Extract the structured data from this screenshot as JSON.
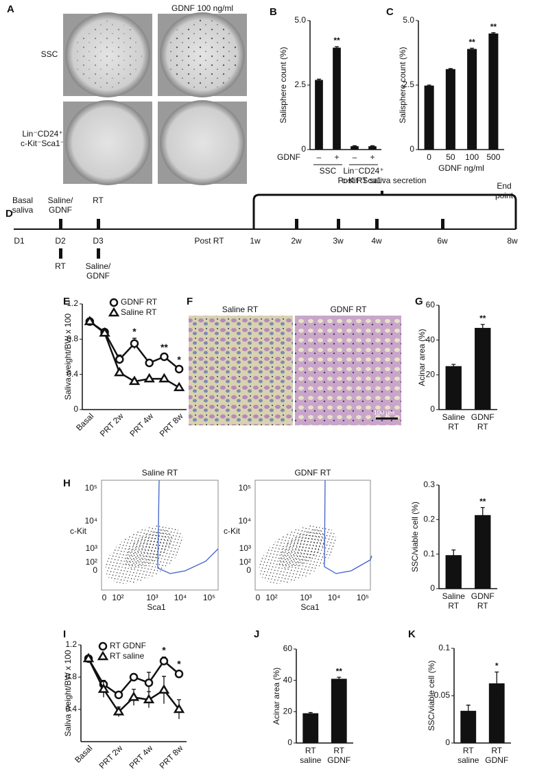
{
  "panel_a": {
    "label": "A",
    "column_header": "GDNF 100 ng/ml",
    "rows": [
      "SSC",
      "Lin⁻CD24⁺ c-Kit⁻Sca1⁻"
    ]
  },
  "timeline": {
    "label": "D",
    "basal": "Basal saliva",
    "top_d2": "Saline/ GDNF",
    "top_d3": "RT",
    "bottom_d2": "RT",
    "bottom_d3": "Saline/ GDNF",
    "phase": "Post RT saliva secretion",
    "end": "End point",
    "post": "Post RT",
    "days": [
      "D1",
      "D2",
      "D3"
    ],
    "weeks": [
      "1w",
      "2w",
      "3w",
      "4w",
      "6w",
      "8w"
    ]
  },
  "panel_f": {
    "label": "F",
    "titles": [
      "Saline RT",
      "GDNF RT"
    ],
    "scale_bar": "100 µm"
  },
  "flow_plots": {
    "label": "H",
    "ylabel": "c-Kit",
    "xlabel": "Sca1",
    "titles": [
      "Saline RT",
      "GDNF RT"
    ],
    "xtick_labels": [
      "0",
      "10²",
      "10³",
      "10⁴",
      "10⁵"
    ],
    "ytick_labels": [
      "0",
      "10²",
      "10³",
      "10⁴",
      "10⁵"
    ]
  },
  "chart_data": [
    {
      "type": "bar",
      "label": "B",
      "ylabel": "Salisphere count (%)",
      "x_row_label": "GDNF",
      "categories": [
        "–",
        "+",
        "–",
        "+"
      ],
      "groups": [
        "SSC",
        "Lin⁻CD24⁺ c-Kit⁻Sca1⁻"
      ],
      "values": [
        2.7,
        3.95,
        0.13,
        0.13
      ],
      "errors": [
        0.03,
        0.04,
        0.02,
        0.02
      ],
      "significance": [
        null,
        "**",
        null,
        null
      ],
      "ylim": [
        0,
        5
      ],
      "yticks": [
        0,
        2.5,
        {
          "value": 5,
          "label": "5.0"
        }
      ],
      "color": "#111111"
    },
    {
      "type": "bar",
      "label": "C",
      "ylabel": "Salisphere count (%)",
      "xlabel": "GDNF ng/ml",
      "categories": [
        "0",
        "50",
        "100",
        "500"
      ],
      "values": [
        2.48,
        3.12,
        3.9,
        4.5
      ],
      "errors": [
        0.02,
        0.02,
        0.03,
        0.03
      ],
      "significance": [
        null,
        null,
        "**",
        "**"
      ],
      "ylim": [
        0,
        5
      ],
      "yticks": [
        0,
        2.5,
        {
          "value": 5,
          "label": "5.0"
        }
      ],
      "color": "#111111"
    },
    {
      "type": "line",
      "label": "E",
      "ylabel": "Saliva weight/BW x 100",
      "categories": [
        "Basal",
        null,
        "PRT 2w",
        null,
        "PRT 4w",
        null,
        "PRT 8w"
      ],
      "series": [
        {
          "name": "GDNF RT",
          "marker": "circle",
          "color": "#111111",
          "values": [
            1.0,
            0.88,
            0.57,
            0.75,
            0.53,
            0.6,
            0.46
          ],
          "errors": [
            0.03,
            0.03,
            0.05,
            0.06,
            0.03,
            0.03,
            0.03
          ],
          "significance": [
            null,
            null,
            null,
            "*",
            null,
            "**",
            "*"
          ]
        },
        {
          "name": "Saline RT",
          "marker": "triangle",
          "color": "#111111",
          "values": [
            1.0,
            0.87,
            0.42,
            0.32,
            0.35,
            0.35,
            0.25
          ],
          "errors": [
            0.03,
            0.03,
            0.03,
            0.03,
            0.02,
            0.02,
            0.02
          ]
        }
      ],
      "ylim": [
        0,
        1.2
      ],
      "yticks": [
        0,
        0.4,
        0.8,
        1.2
      ]
    },
    {
      "type": "bar",
      "label": "G",
      "ylabel": "Acinar area (%)",
      "categories": [
        "Saline RT",
        "GDNF RT"
      ],
      "values": [
        25,
        47
      ],
      "errors": [
        1,
        2
      ],
      "significance": [
        null,
        "**"
      ],
      "ylim": [
        0,
        60
      ],
      "yticks": [
        0,
        20,
        40,
        60
      ],
      "color": "#111111"
    },
    {
      "type": "bar",
      "ylabel": "SSC/viable cell (%)",
      "categories": [
        "Saline RT",
        "GDNF RT"
      ],
      "values": [
        0.097,
        0.213
      ],
      "errors": [
        0.015,
        0.022
      ],
      "significance": [
        null,
        "**"
      ],
      "ylim": [
        0,
        0.3
      ],
      "yticks": [
        0,
        0.1,
        0.2,
        0.3
      ],
      "color": "#111111"
    },
    {
      "type": "line",
      "label": "I",
      "ylabel": "Saliva weight/BW x 100",
      "categories": [
        "Basal",
        null,
        "PRT 2w",
        null,
        "PRT 4w",
        null,
        "PRT 8w"
      ],
      "series": [
        {
          "name": "RT GDNF",
          "marker": "circle",
          "color": "#111111",
          "values": [
            1.03,
            0.71,
            0.58,
            0.8,
            0.73,
            1.0,
            0.84
          ],
          "errors": [
            0.04,
            0.05,
            0.03,
            0.04,
            0.13,
            0.05,
            0.04
          ],
          "significance": [
            null,
            null,
            null,
            null,
            null,
            "*",
            "*"
          ]
        },
        {
          "name": "RT saline",
          "marker": "triangle",
          "color": "#111111",
          "values": [
            1.03,
            0.65,
            0.37,
            0.55,
            0.52,
            0.64,
            0.4
          ],
          "errors": [
            0.04,
            0.1,
            0.06,
            0.1,
            0.1,
            0.17,
            0.12
          ]
        }
      ],
      "ylim": [
        0,
        1.2
      ],
      "yticks": [
        0.4,
        0.8,
        1.2
      ]
    },
    {
      "type": "bar",
      "label": "J",
      "ylabel": "Acinar area (%)",
      "categories": [
        "RT saline",
        "RT GDNF"
      ],
      "values": [
        19,
        41
      ],
      "errors": [
        0.5,
        1
      ],
      "significance": [
        null,
        "**"
      ],
      "ylim": [
        0,
        60
      ],
      "yticks": [
        0,
        20,
        40,
        60
      ],
      "color": "#111111"
    },
    {
      "type": "bar",
      "label": "K",
      "ylabel": "SSC/viable cell (%)",
      "categories": [
        "RT saline",
        "RT GDNF"
      ],
      "values": [
        0.034,
        0.063
      ],
      "errors": [
        0.006,
        0.012
      ],
      "significance": [
        null,
        "*"
      ],
      "ylim": [
        0,
        0.1
      ],
      "yticks": [
        0,
        0.05,
        0.1
      ],
      "color": "#111111"
    }
  ]
}
